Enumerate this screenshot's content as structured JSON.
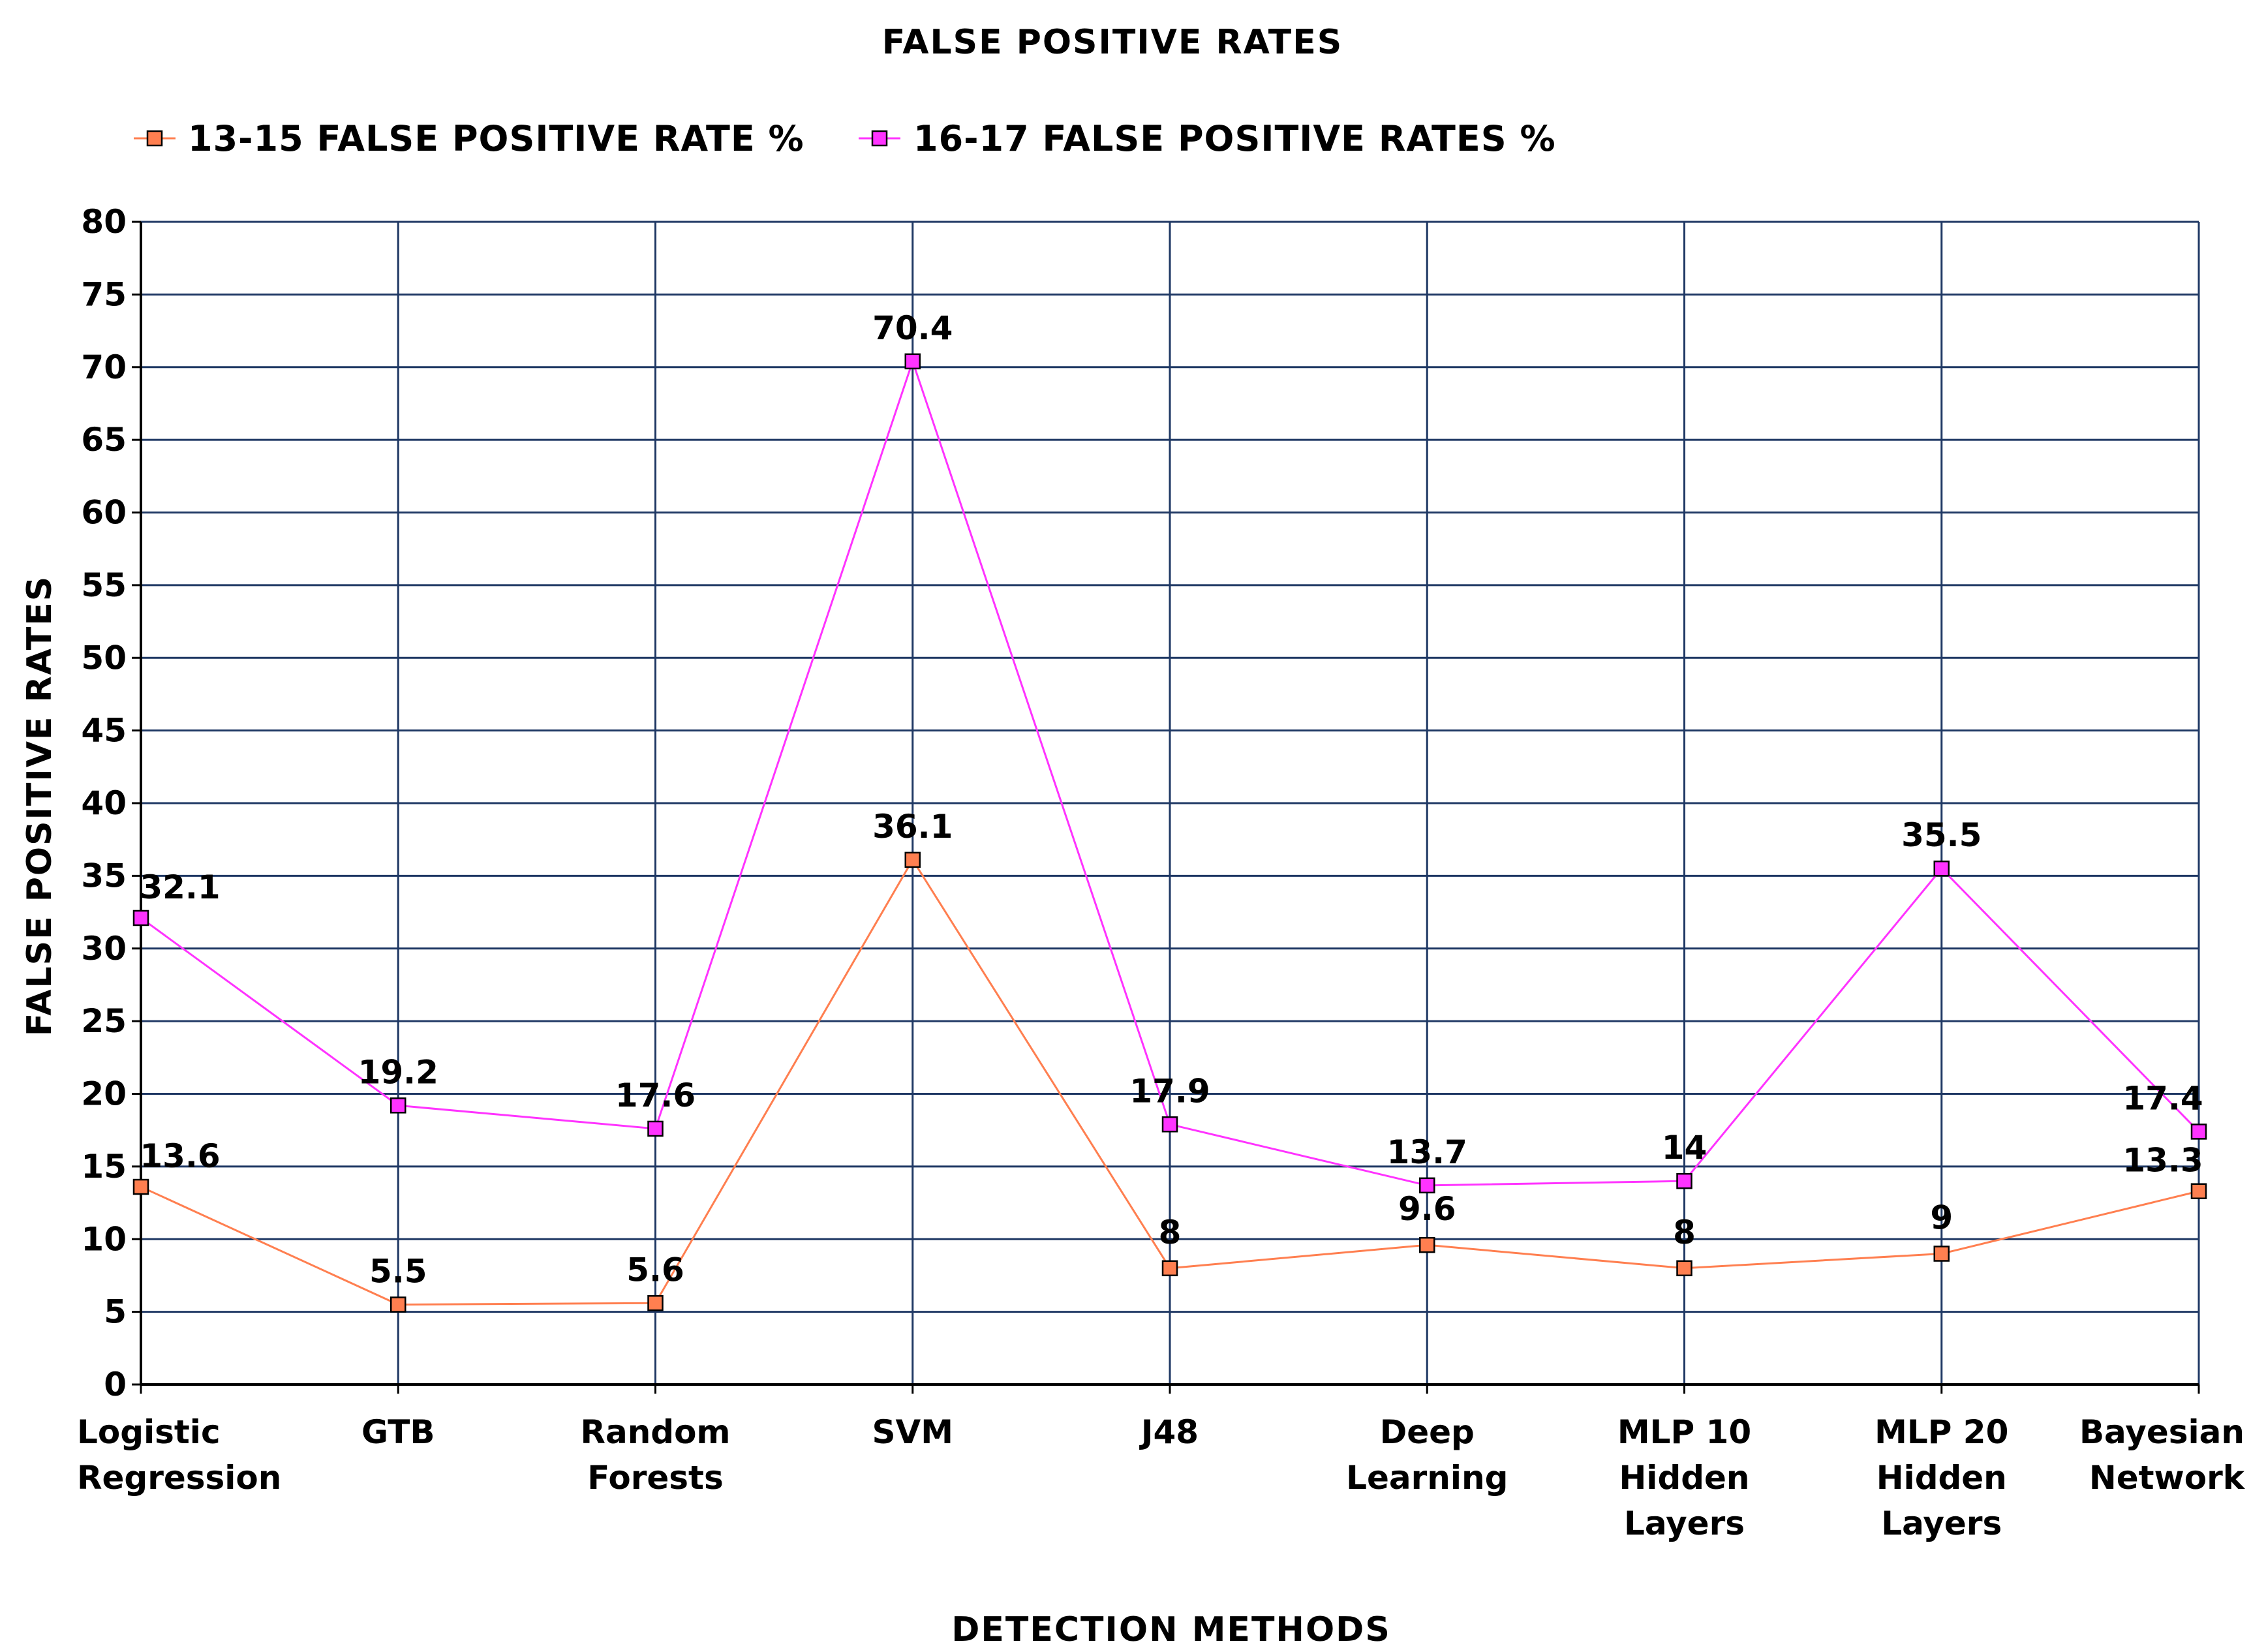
{
  "chart_data": {
    "type": "line",
    "title": "FALSE POSITIVE RATES",
    "xlabel": "DETECTION METHODS",
    "ylabel": "FALSE POSITIVE RATES",
    "ylim": [
      0,
      80
    ],
    "ytick_step": 5,
    "grid": true,
    "legend_position": "top",
    "categories": [
      [
        "Logistic",
        "Regression"
      ],
      [
        "GTB"
      ],
      [
        "Random",
        "Forests"
      ],
      [
        "SVM"
      ],
      [
        "J48"
      ],
      [
        "Deep",
        "Learning"
      ],
      [
        "MLP 10",
        "Hidden",
        "Layers"
      ],
      [
        "MLP 20",
        "Hidden",
        "Layers"
      ],
      [
        "Bayesian",
        "Network"
      ]
    ],
    "series": [
      {
        "name": "13-15 FALSE POSITIVE RATE %",
        "color": "#ff7f50",
        "values": [
          13.6,
          5.5,
          5.6,
          36.1,
          8,
          9.6,
          8,
          9,
          13.3
        ]
      },
      {
        "name": "16-17 FALSE POSITIVE RATES %",
        "color": "#ff33ff",
        "values": [
          32.1,
          19.2,
          17.6,
          70.4,
          17.9,
          13.7,
          14,
          35.5,
          17.4
        ]
      }
    ],
    "colors": {
      "grid": "#1f3864",
      "axis": "#000000"
    }
  }
}
